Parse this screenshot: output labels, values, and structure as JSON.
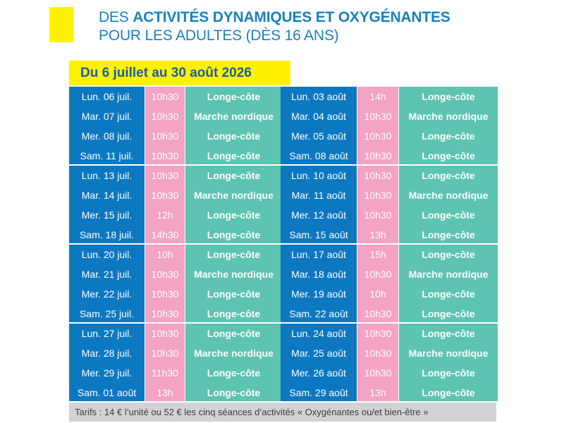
{
  "header": {
    "title_normal": "DES ",
    "title_bold": "ACTIVITÉS DYNAMIQUES ET OXYGÉNANTES",
    "subtitle": "POUR LES ADULTES (DÈS 16 ANS)"
  },
  "period": "Du 6 juillet au 30 août 2026",
  "colors": {
    "day": "#0d78c2",
    "time": "#f4a3c4",
    "activity": "#5cc4b0",
    "accent": "#fef200",
    "title": "#1a7fc1"
  },
  "left": [
    [
      {
        "day": "Lun. 06 juil.",
        "time": "10h30",
        "activity": "Longe-côte"
      },
      {
        "day": "Mar. 07 juil.",
        "time": "10h30",
        "activity": "Marche nordique"
      },
      {
        "day": "Mer. 08 juil.",
        "time": "10h30",
        "activity": "Longe-côte"
      },
      {
        "day": "Sam. 11 juil.",
        "time": "10h30",
        "activity": "Longe-côte"
      }
    ],
    [
      {
        "day": "Lun. 13 juil.",
        "time": "10h30",
        "activity": "Longe-côte"
      },
      {
        "day": "Mar. 14 juil.",
        "time": "10h30",
        "activity": "Marche nordique"
      },
      {
        "day": "Mer. 15 juil.",
        "time": "12h",
        "activity": "Longe-côte"
      },
      {
        "day": "Sam. 18 juil.",
        "time": "14h30",
        "activity": "Longe-côte"
      }
    ],
    [
      {
        "day": "Lun. 20 juil.",
        "time": "10h",
        "activity": "Longe-côte"
      },
      {
        "day": "Mar. 21 juil.",
        "time": "10h30",
        "activity": "Marche nordique"
      },
      {
        "day": "Mer. 22 juil.",
        "time": "10h30",
        "activity": "Longe-côte"
      },
      {
        "day": "Sam. 25 juil.",
        "time": "10h30",
        "activity": "Longe-côte"
      }
    ],
    [
      {
        "day": "Lun. 27 juil.",
        "time": "10h30",
        "activity": "Longe-côte"
      },
      {
        "day": "Mar. 28 juil.",
        "time": "10h30",
        "activity": "Marche nordique"
      },
      {
        "day": "Mer. 29 juil.",
        "time": "11h30",
        "activity": "Longe-côte"
      },
      {
        "day": "Sam. 01 août",
        "time": "13h",
        "activity": "Longe-côte"
      }
    ]
  ],
  "right": [
    [
      {
        "day": "Lun. 03 août",
        "time": "14h",
        "activity": "Longe-côte"
      },
      {
        "day": "Mar. 04 août",
        "time": "10h30",
        "activity": "Marche nordique"
      },
      {
        "day": "Mer. 05 août",
        "time": "10h30",
        "activity": "Longe-côte"
      },
      {
        "day": "Sam. 08 août",
        "time": "10h30",
        "activity": "Longe-côte"
      }
    ],
    [
      {
        "day": "Lun. 10 août",
        "time": "10h30",
        "activity": "Longe-côte"
      },
      {
        "day": "Mar. 11 août",
        "time": "10h30",
        "activity": "Marche nordique"
      },
      {
        "day": "Mer. 12 août",
        "time": "10h30",
        "activity": "Longe-côte"
      },
      {
        "day": "Sam. 15 août",
        "time": "13h",
        "activity": "Longe-côte"
      }
    ],
    [
      {
        "day": "Lun. 17 août",
        "time": "15h",
        "activity": "Longe-côte"
      },
      {
        "day": "Mar. 18 août",
        "time": "10h30",
        "activity": "Marche nordique"
      },
      {
        "day": "Mer. 19 août",
        "time": "10h",
        "activity": "Longe-côte"
      },
      {
        "day": "Sam. 22 août",
        "time": "10h30",
        "activity": "Longe-côte"
      }
    ],
    [
      {
        "day": "Lun. 24 août",
        "time": "10h30",
        "activity": "Longe-côte"
      },
      {
        "day": "Mar. 25 août",
        "time": "10h30",
        "activity": "Marche nordique"
      },
      {
        "day": "Mer. 26 août",
        "time": "10h30",
        "activity": "Longe-côte"
      },
      {
        "day": "Sam. 29 août",
        "time": "13h",
        "activity": "Longe-côte"
      }
    ]
  ],
  "tarifs": "Tarifs :  14 € l’unité ou 52 € les cinq séances d’activités « Oxygénantes ou/et bien-être »"
}
